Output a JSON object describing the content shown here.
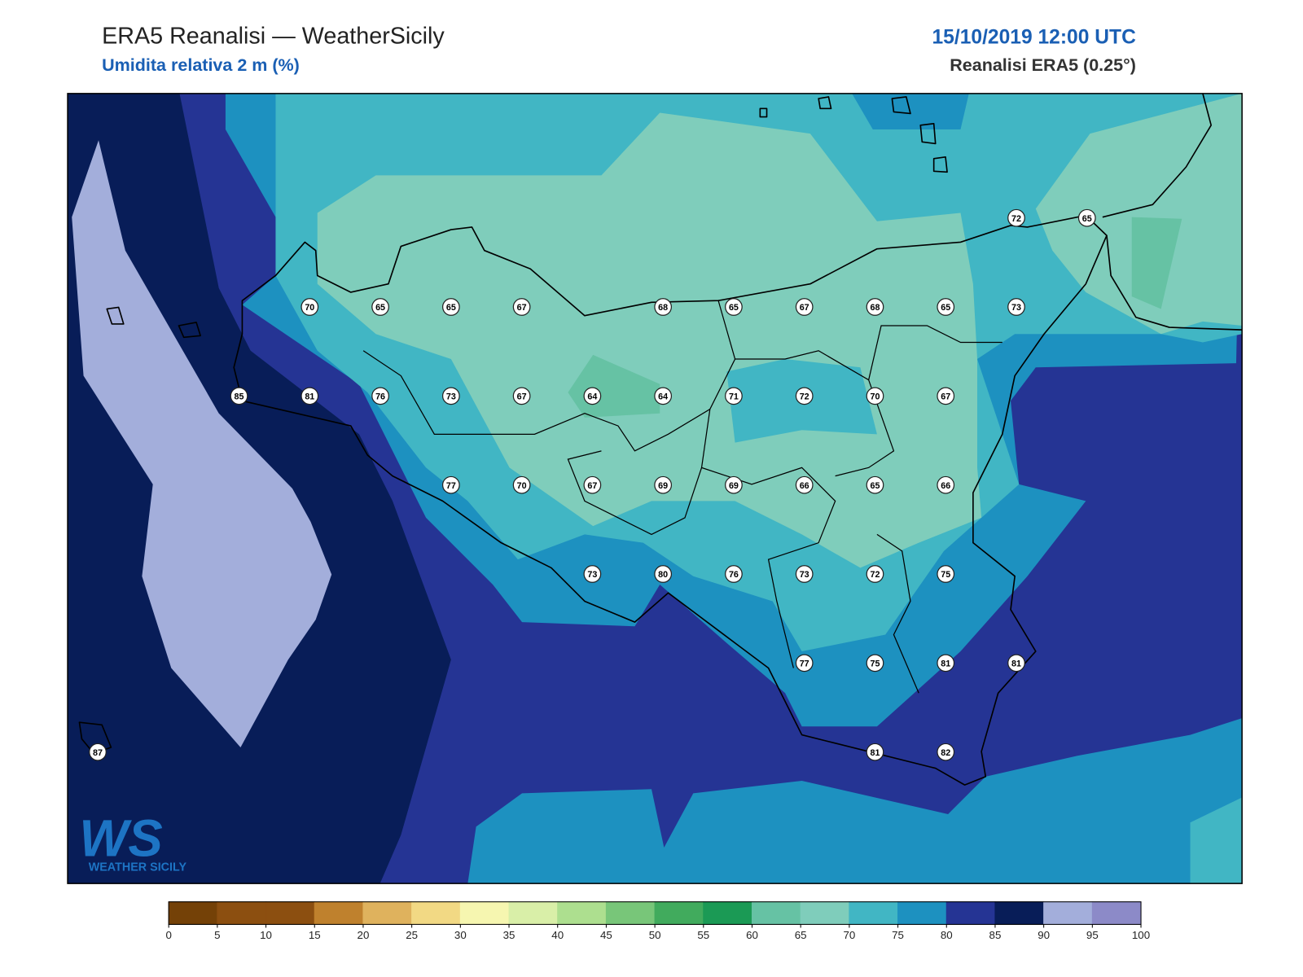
{
  "header": {
    "title": "ERA5 Reanalisi — WeatherSicily",
    "subtitle": "Umidita relativa 2 m (%)",
    "datetime": "15/10/2019 12:00 UTC",
    "source": "Reanalisi ERA5 (0.25°)"
  },
  "stations": [
    [
      null,
      null,
      null,
      null,
      null,
      null,
      null,
      null,
      null,
      null,
      null,
      null,
      null,
      72,
      65
    ],
    [
      null,
      null,
      null,
      70,
      65,
      65,
      67,
      null,
      68,
      65,
      67,
      68,
      65,
      73,
      null
    ],
    [
      null,
      null,
      85,
      81,
      76,
      73,
      67,
      64,
      64,
      71,
      72,
      70,
      67,
      null,
      null
    ],
    [
      null,
      null,
      null,
      null,
      null,
      77,
      70,
      67,
      69,
      69,
      66,
      65,
      66,
      null,
      null
    ],
    [
      null,
      null,
      null,
      null,
      null,
      null,
      null,
      73,
      80,
      76,
      73,
      72,
      75,
      null,
      null
    ],
    [
      null,
      null,
      null,
      null,
      null,
      null,
      null,
      null,
      null,
      null,
      77,
      75,
      81,
      81,
      null
    ],
    [
      87,
      null,
      null,
      null,
      null,
      null,
      null,
      null,
      null,
      null,
      null,
      81,
      82,
      null,
      null
    ]
  ],
  "colorbar": {
    "ticks": [
      0,
      5,
      10,
      15,
      20,
      25,
      30,
      35,
      40,
      45,
      50,
      55,
      60,
      65,
      70,
      75,
      80,
      85,
      90,
      95,
      100
    ],
    "colors": [
      "#744107",
      "#8c4f10",
      "#8c4f10",
      "#bf812d",
      "#dfb25d",
      "#f2d984",
      "#f6f6b0",
      "#d9efa8",
      "#addf8f",
      "#78c679",
      "#41ab5d",
      "#1b9a55",
      "#66c2a4",
      "#7fcdbb",
      "#41b6c4",
      "#1d91c0",
      "#253494",
      "#081d58",
      "#a3aedb",
      "#8c8ac8"
    ]
  },
  "logo": {
    "text": "WS",
    "caption": "WEATHER SICILY"
  }
}
